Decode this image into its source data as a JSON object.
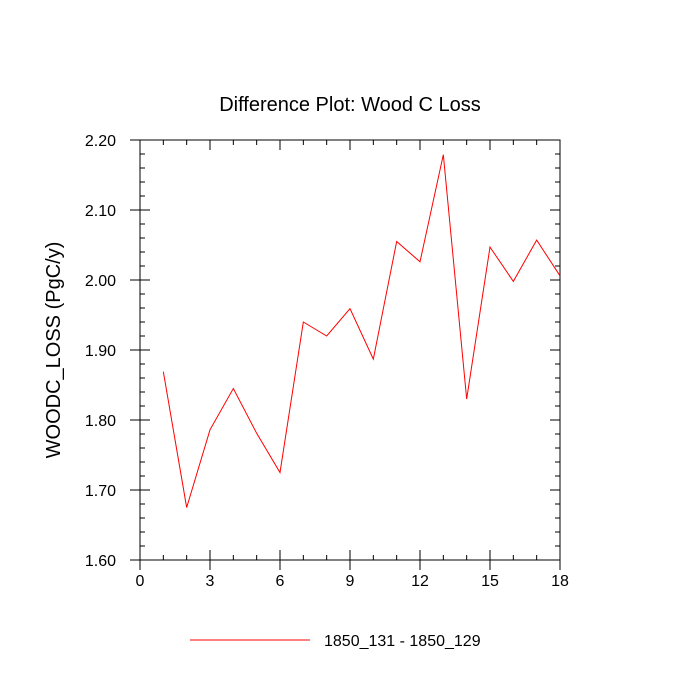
{
  "chart_data": {
    "type": "line",
    "title": "Difference Plot: Wood C Loss",
    "xlabel": "",
    "ylabel": "WOODC_LOSS  (PgC/y)",
    "xlim": [
      0,
      18
    ],
    "ylim": [
      1.6,
      2.2
    ],
    "x_ticks": [
      0,
      3,
      6,
      9,
      12,
      15,
      18
    ],
    "x_tick_labels": [
      "0",
      "3",
      "6",
      "9",
      "12",
      "15",
      "18"
    ],
    "y_ticks": [
      1.6,
      1.7,
      1.8,
      1.9,
      2.0,
      2.1,
      2.2
    ],
    "y_tick_labels": [
      "1.60",
      "1.70",
      "1.80",
      "1.90",
      "2.00",
      "2.10",
      "2.20"
    ],
    "grid": false,
    "legend_position": "bottom-center",
    "series": [
      {
        "name": "1850_131 - 1850_129",
        "color": "#ff0000",
        "x": [
          1,
          2,
          3,
          4,
          5,
          6,
          7,
          8,
          9,
          10,
          11,
          12,
          13,
          14,
          15,
          16,
          17,
          18
        ],
        "values": [
          1.869,
          1.675,
          1.786,
          1.845,
          1.781,
          1.725,
          1.94,
          1.92,
          1.959,
          1.887,
          2.055,
          2.026,
          2.179,
          1.83,
          2.047,
          1.998,
          2.057,
          2.006
        ]
      }
    ]
  }
}
